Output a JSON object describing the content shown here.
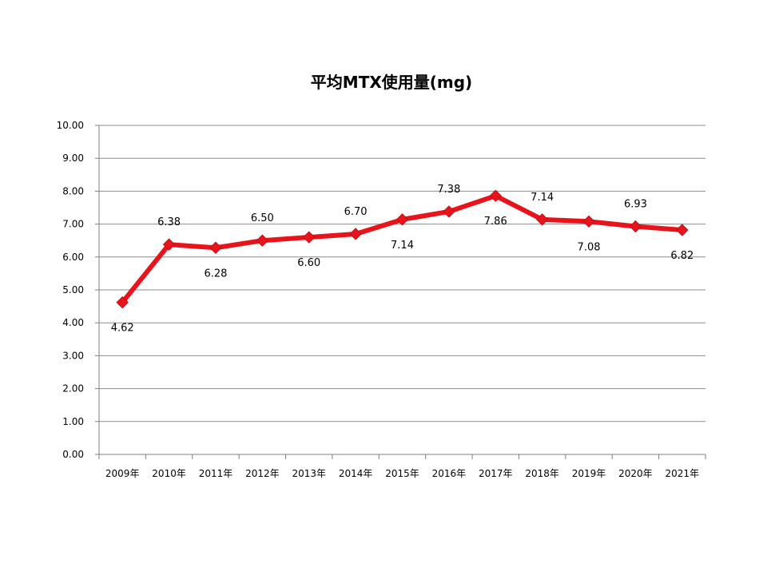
{
  "chart_data": {
    "type": "line",
    "title": "平均MTX使用量(mg)",
    "categories": [
      "2009年",
      "2010年",
      "2011年",
      "2012年",
      "2013年",
      "2014年",
      "2015年",
      "2016年",
      "2017年",
      "2018年",
      "2019年",
      "2020年",
      "2021年"
    ],
    "series": [
      {
        "values": [
          4.62,
          6.38,
          6.28,
          6.5,
          6.6,
          6.7,
          7.14,
          7.38,
          7.86,
          7.14,
          7.08,
          6.93,
          6.82
        ],
        "color": "#e8141c",
        "marker": "diamond"
      }
    ],
    "data_labels": [
      "4.62",
      "6.38",
      "6.28",
      "6.50",
      "6.60",
      "6.70",
      "7.14",
      "7.38",
      "7.86",
      "7.14",
      "7.08",
      "6.93",
      "6.82"
    ],
    "y_ticks": [
      "0.00",
      "1.00",
      "2.00",
      "3.00",
      "4.00",
      "5.00",
      "6.00",
      "7.00",
      "8.00",
      "9.00",
      "10.00"
    ],
    "ylim": [
      0,
      10
    ],
    "grid": true,
    "legend": "none",
    "gridline_color": "#8c8c8c",
    "axis_color": "#7f7f7f"
  }
}
